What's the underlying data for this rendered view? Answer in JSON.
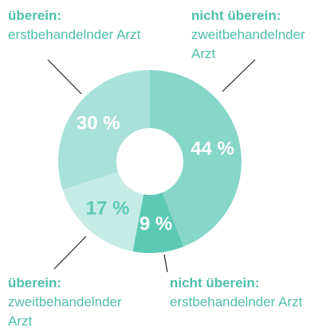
{
  "chart_data": {
    "type": "donut",
    "categories": [
      {
        "head": "nicht überein:",
        "text": "zweitbehandelnder Arzt"
      },
      {
        "head": "nicht überein:",
        "text": "erstbehandelnder Arzt"
      },
      {
        "head": "überein:",
        "text": "zweitbehandelnder Arzt"
      },
      {
        "head": "überein:",
        "text": "erstbehandelnder Arzt"
      }
    ],
    "values": [
      44,
      9,
      17,
      30
    ],
    "value_labels": [
      "44 %",
      "9 %",
      "17 %",
      "30 %"
    ],
    "colors": [
      "#86d6c9",
      "#5cc9b5",
      "#c5ece4",
      "#a8e1d7"
    ],
    "label_colors": [
      "#ffffff",
      "#ffffff",
      "#5cc9b5",
      "#ffffff"
    ]
  }
}
